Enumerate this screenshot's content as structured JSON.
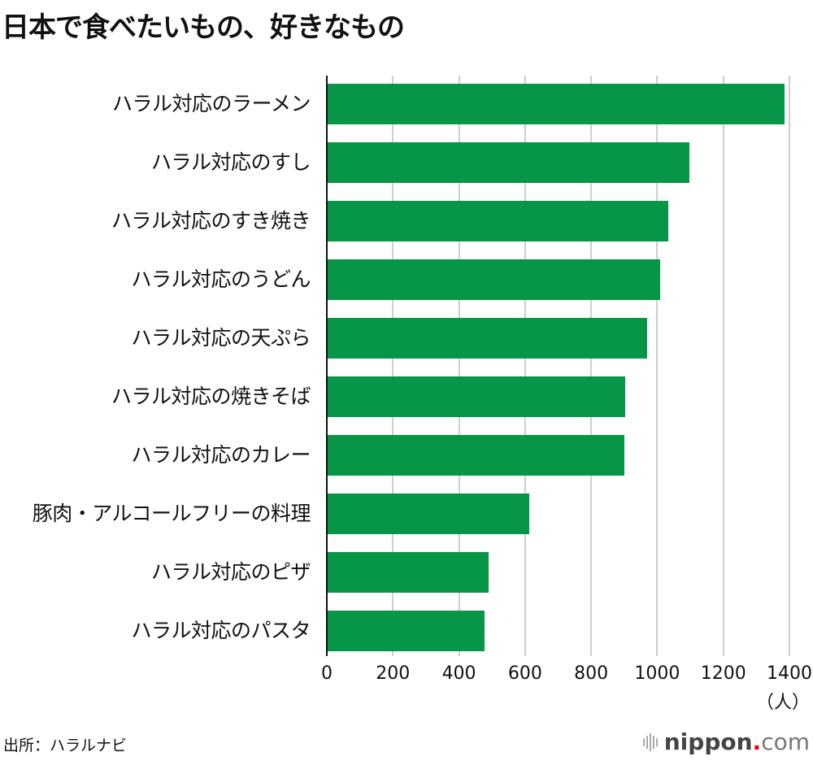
{
  "title": "日本で食べたいもの、好きなもの",
  "colors": {
    "bar": "#079647",
    "axis": "#111111",
    "grid": "#cfcfcf",
    "logo_dot": "#e60012"
  },
  "chart_data": {
    "type": "bar",
    "orientation": "horizontal",
    "title": "日本で食べたいもの、好きなもの",
    "categories": [
      "ハラル対応のラーメン",
      "ハラル対応のすし",
      "ハラル対応のすき焼き",
      "ハラル対応のうどん",
      "ハラル対応の天ぷら",
      "ハラル対応の焼きそば",
      "ハラル対応のカレー",
      "豚肉・アルコールフリーの料理",
      "ハラル対応のピザ",
      "ハラル対応のパスタ"
    ],
    "values": [
      1388,
      1100,
      1036,
      1011,
      973,
      905,
      903,
      615,
      492,
      480
    ],
    "xlabel": "（人）",
    "ylabel": "",
    "xlim": [
      0,
      1400
    ],
    "xticks": [
      "0",
      "200",
      "400",
      "600",
      "800",
      "1000",
      "1200",
      "1400"
    ],
    "grid": true,
    "legend": null
  },
  "axis": {
    "unit": "（人）"
  },
  "footer": {
    "source": "出所：ハラルナビ",
    "logo": {
      "brand": "nippon",
      "dot": ".",
      "tld": "com"
    }
  }
}
